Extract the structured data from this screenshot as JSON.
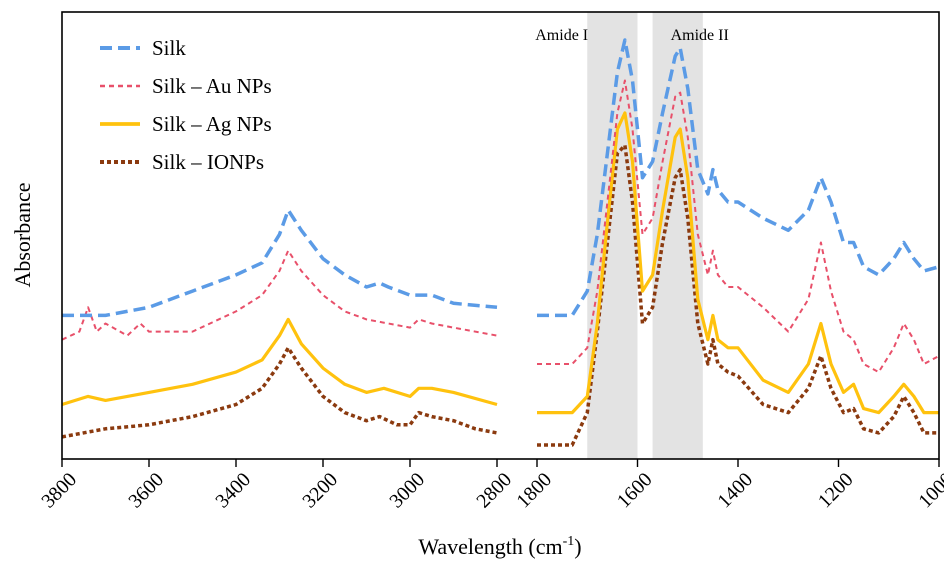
{
  "chart_data": {
    "type": "line",
    "xlabel": "Wavelength (cm",
    "xlabel_sup": "-1",
    "xlabel_end": ")",
    "ylabel": "Absorbance",
    "grid": false,
    "legend_position": "top-left",
    "panels": [
      {
        "xlim": [
          3800,
          2800
        ],
        "ticks": [
          3800,
          3600,
          3400,
          3200,
          3000,
          2800
        ]
      },
      {
        "xlim": [
          1800,
          1000
        ],
        "ticks": [
          1800,
          1600,
          1400,
          1200,
          1000
        ]
      }
    ],
    "bands": [
      {
        "label": "Amide I",
        "range": [
          1700,
          1600
        ]
      },
      {
        "label": "Amide II",
        "range": [
          1570,
          1470
        ]
      }
    ],
    "series": [
      {
        "name": "Silk",
        "color": "#5b9be6",
        "dash": "dashed",
        "points": [
          [
            3800,
            0.32
          ],
          [
            3700,
            0.32
          ],
          [
            3600,
            0.34
          ],
          [
            3500,
            0.38
          ],
          [
            3400,
            0.42
          ],
          [
            3340,
            0.45
          ],
          [
            3300,
            0.52
          ],
          [
            3280,
            0.58
          ],
          [
            3250,
            0.53
          ],
          [
            3200,
            0.46
          ],
          [
            3150,
            0.42
          ],
          [
            3100,
            0.39
          ],
          [
            3070,
            0.4
          ],
          [
            3050,
            0.39
          ],
          [
            3000,
            0.37
          ],
          [
            2950,
            0.37
          ],
          [
            2900,
            0.35
          ],
          [
            2800,
            0.34
          ]
        ],
        "points2": [
          [
            1800,
            0.32
          ],
          [
            1730,
            0.32
          ],
          [
            1700,
            0.38
          ],
          [
            1680,
            0.52
          ],
          [
            1660,
            0.72
          ],
          [
            1640,
            0.92
          ],
          [
            1625,
            1.0
          ],
          [
            1610,
            0.9
          ],
          [
            1590,
            0.66
          ],
          [
            1570,
            0.7
          ],
          [
            1550,
            0.82
          ],
          [
            1525,
            0.96
          ],
          [
            1515,
            0.98
          ],
          [
            1500,
            0.88
          ],
          [
            1480,
            0.68
          ],
          [
            1460,
            0.62
          ],
          [
            1450,
            0.68
          ],
          [
            1440,
            0.63
          ],
          [
            1420,
            0.6
          ],
          [
            1400,
            0.6
          ],
          [
            1350,
            0.56
          ],
          [
            1300,
            0.53
          ],
          [
            1260,
            0.58
          ],
          [
            1235,
            0.66
          ],
          [
            1215,
            0.6
          ],
          [
            1190,
            0.5
          ],
          [
            1170,
            0.5
          ],
          [
            1150,
            0.44
          ],
          [
            1120,
            0.42
          ],
          [
            1090,
            0.46
          ],
          [
            1070,
            0.5
          ],
          [
            1050,
            0.46
          ],
          [
            1030,
            0.43
          ],
          [
            1000,
            0.44
          ]
        ]
      },
      {
        "name": "Silk – Au NPs",
        "color": "#e8506a",
        "dash": "shortdash",
        "points": [
          [
            3800,
            0.26
          ],
          [
            3760,
            0.28
          ],
          [
            3740,
            0.34
          ],
          [
            3720,
            0.28
          ],
          [
            3700,
            0.3
          ],
          [
            3650,
            0.27
          ],
          [
            3620,
            0.3
          ],
          [
            3600,
            0.28
          ],
          [
            3500,
            0.28
          ],
          [
            3400,
            0.33
          ],
          [
            3340,
            0.37
          ],
          [
            3300,
            0.43
          ],
          [
            3280,
            0.48
          ],
          [
            3250,
            0.43
          ],
          [
            3200,
            0.37
          ],
          [
            3150,
            0.33
          ],
          [
            3100,
            0.31
          ],
          [
            3050,
            0.3
          ],
          [
            3000,
            0.29
          ],
          [
            2980,
            0.31
          ],
          [
            2950,
            0.3
          ],
          [
            2900,
            0.29
          ],
          [
            2800,
            0.27
          ]
        ],
        "points2": [
          [
            1800,
            0.2
          ],
          [
            1730,
            0.2
          ],
          [
            1700,
            0.24
          ],
          [
            1680,
            0.38
          ],
          [
            1660,
            0.6
          ],
          [
            1640,
            0.82
          ],
          [
            1625,
            0.9
          ],
          [
            1610,
            0.78
          ],
          [
            1590,
            0.52
          ],
          [
            1570,
            0.56
          ],
          [
            1550,
            0.7
          ],
          [
            1525,
            0.86
          ],
          [
            1515,
            0.87
          ],
          [
            1500,
            0.76
          ],
          [
            1480,
            0.52
          ],
          [
            1460,
            0.42
          ],
          [
            1450,
            0.48
          ],
          [
            1440,
            0.42
          ],
          [
            1420,
            0.39
          ],
          [
            1400,
            0.39
          ],
          [
            1350,
            0.34
          ],
          [
            1300,
            0.28
          ],
          [
            1260,
            0.36
          ],
          [
            1235,
            0.5
          ],
          [
            1215,
            0.38
          ],
          [
            1190,
            0.28
          ],
          [
            1170,
            0.26
          ],
          [
            1150,
            0.2
          ],
          [
            1120,
            0.18
          ],
          [
            1090,
            0.24
          ],
          [
            1070,
            0.3
          ],
          [
            1050,
            0.26
          ],
          [
            1030,
            0.2
          ],
          [
            1000,
            0.22
          ]
        ]
      },
      {
        "name": "Silk – Ag NPs",
        "color": "#ffc20e",
        "dash": "solid",
        "points": [
          [
            3800,
            0.1
          ],
          [
            3740,
            0.12
          ],
          [
            3700,
            0.11
          ],
          [
            3650,
            0.12
          ],
          [
            3600,
            0.13
          ],
          [
            3500,
            0.15
          ],
          [
            3400,
            0.18
          ],
          [
            3340,
            0.21
          ],
          [
            3300,
            0.27
          ],
          [
            3280,
            0.31
          ],
          [
            3250,
            0.25
          ],
          [
            3200,
            0.19
          ],
          [
            3150,
            0.15
          ],
          [
            3100,
            0.13
          ],
          [
            3060,
            0.14
          ],
          [
            3000,
            0.12
          ],
          [
            2980,
            0.14
          ],
          [
            2950,
            0.14
          ],
          [
            2900,
            0.13
          ],
          [
            2800,
            0.1
          ]
        ],
        "points2": [
          [
            1800,
            0.08
          ],
          [
            1730,
            0.08
          ],
          [
            1700,
            0.12
          ],
          [
            1680,
            0.3
          ],
          [
            1660,
            0.55
          ],
          [
            1640,
            0.78
          ],
          [
            1625,
            0.82
          ],
          [
            1610,
            0.7
          ],
          [
            1590,
            0.38
          ],
          [
            1570,
            0.42
          ],
          [
            1550,
            0.58
          ],
          [
            1525,
            0.76
          ],
          [
            1515,
            0.78
          ],
          [
            1500,
            0.66
          ],
          [
            1480,
            0.36
          ],
          [
            1460,
            0.26
          ],
          [
            1450,
            0.32
          ],
          [
            1440,
            0.26
          ],
          [
            1420,
            0.24
          ],
          [
            1400,
            0.24
          ],
          [
            1350,
            0.16
          ],
          [
            1300,
            0.13
          ],
          [
            1260,
            0.2
          ],
          [
            1235,
            0.3
          ],
          [
            1215,
            0.2
          ],
          [
            1190,
            0.13
          ],
          [
            1170,
            0.15
          ],
          [
            1150,
            0.09
          ],
          [
            1120,
            0.08
          ],
          [
            1090,
            0.12
          ],
          [
            1070,
            0.15
          ],
          [
            1050,
            0.12
          ],
          [
            1030,
            0.08
          ],
          [
            1000,
            0.08
          ]
        ]
      },
      {
        "name": "Silk – IONPs",
        "color": "#8b3a0f",
        "dash": "dotted",
        "points": [
          [
            3800,
            0.02
          ],
          [
            3700,
            0.04
          ],
          [
            3600,
            0.05
          ],
          [
            3500,
            0.07
          ],
          [
            3400,
            0.1
          ],
          [
            3340,
            0.14
          ],
          [
            3300,
            0.2
          ],
          [
            3280,
            0.24
          ],
          [
            3250,
            0.19
          ],
          [
            3200,
            0.12
          ],
          [
            3150,
            0.08
          ],
          [
            3100,
            0.06
          ],
          [
            3070,
            0.07
          ],
          [
            3030,
            0.05
          ],
          [
            3000,
            0.05
          ],
          [
            2980,
            0.08
          ],
          [
            2950,
            0.07
          ],
          [
            2900,
            0.06
          ],
          [
            2850,
            0.04
          ],
          [
            2800,
            0.03
          ]
        ],
        "points2": [
          [
            1800,
            0.0
          ],
          [
            1730,
            0.0
          ],
          [
            1700,
            0.08
          ],
          [
            1680,
            0.28
          ],
          [
            1660,
            0.5
          ],
          [
            1640,
            0.72
          ],
          [
            1625,
            0.74
          ],
          [
            1610,
            0.6
          ],
          [
            1590,
            0.3
          ],
          [
            1570,
            0.34
          ],
          [
            1550,
            0.5
          ],
          [
            1525,
            0.66
          ],
          [
            1515,
            0.68
          ],
          [
            1500,
            0.56
          ],
          [
            1480,
            0.3
          ],
          [
            1460,
            0.2
          ],
          [
            1450,
            0.26
          ],
          [
            1440,
            0.2
          ],
          [
            1420,
            0.18
          ],
          [
            1400,
            0.17
          ],
          [
            1350,
            0.1
          ],
          [
            1300,
            0.08
          ],
          [
            1260,
            0.14
          ],
          [
            1235,
            0.22
          ],
          [
            1215,
            0.14
          ],
          [
            1190,
            0.08
          ],
          [
            1170,
            0.09
          ],
          [
            1150,
            0.04
          ],
          [
            1120,
            0.03
          ],
          [
            1090,
            0.07
          ],
          [
            1070,
            0.12
          ],
          [
            1050,
            0.08
          ],
          [
            1030,
            0.03
          ],
          [
            1000,
            0.03
          ]
        ]
      }
    ]
  }
}
